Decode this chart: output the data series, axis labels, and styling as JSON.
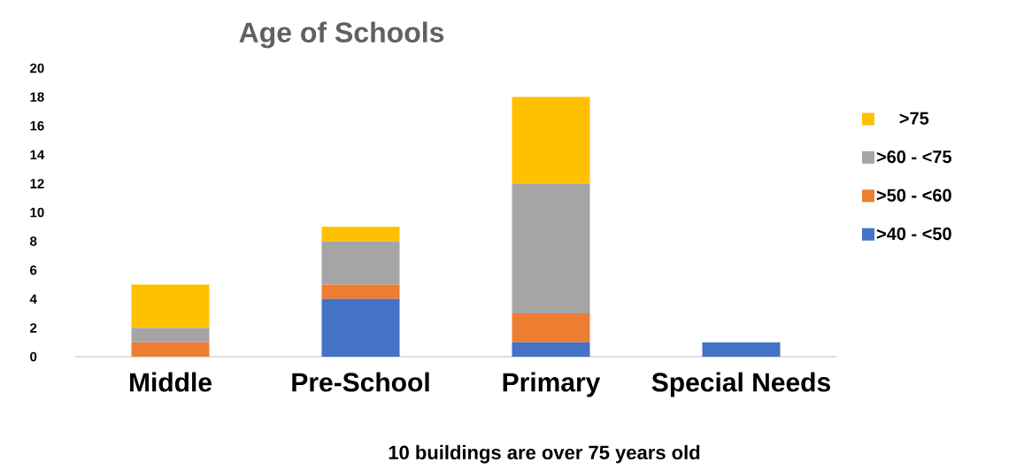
{
  "chart_data": {
    "type": "bar",
    "title": "Age of Schools",
    "categories": [
      "Middle",
      "Pre-School",
      "Primary",
      "Special Needs"
    ],
    "stacked": true,
    "series": [
      {
        "name": ">40 - <50",
        "color": "#4472c4",
        "values": [
          0,
          4,
          1,
          1
        ]
      },
      {
        "name": ">50 - <60",
        "color": "#ed7d31",
        "values": [
          1,
          1,
          2,
          0
        ]
      },
      {
        "name": ">60 - <75",
        "color": "#a5a5a5",
        "values": [
          1,
          3,
          9,
          0
        ]
      },
      {
        "name": ">75",
        "color": "#ffc000",
        "values": [
          3,
          1,
          6,
          0
        ]
      }
    ],
    "ylim": [
      0,
      20
    ],
    "yticks": [
      0,
      2,
      4,
      6,
      8,
      10,
      12,
      14,
      16,
      18,
      20
    ],
    "legend": "right",
    "annotations": [
      "10 buildings are over 75 years old"
    ]
  }
}
